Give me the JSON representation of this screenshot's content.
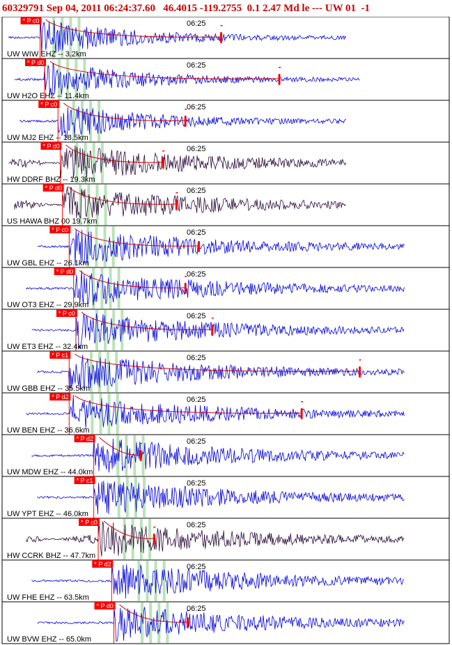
{
  "header": {
    "title": "60329791 Sep 04, 2011 06:24:37.60   46.4015 -119.2755  0.1 2.47 Md le --- UW 01  -1"
  },
  "colors": {
    "header_text": "#cc0000",
    "trace_blue": "#0000dd",
    "trace_dark": "#2a0a3a",
    "pick_box": "#ff0000",
    "coda_curve": "#cc0000",
    "tick_green": "#a8dca8",
    "panel_border": "#000000",
    "background": "#ffffff"
  },
  "chart_data": {
    "type": "seismogram",
    "time_tick_label": "06:25",
    "stations": [
      {
        "label": "UW WIW EHZ -- 3.2km",
        "pick": "P c0",
        "pick_pos": 0.085,
        "color": "blue",
        "end_mark": 0.49
      },
      {
        "label": "UW H2O EHZ -- 11.4km",
        "pick": "P d0",
        "pick_pos": 0.095,
        "color": "blue",
        "end_mark": 0.62
      },
      {
        "label": "UW MJ2 EHZ -- 18.5km",
        "pick": "P c0",
        "pick_pos": 0.125,
        "color": "blue",
        "end_mark": 0.41
      },
      {
        "label": "HW DDRF BHZ -- 19.3km",
        "pick": "P d0",
        "pick_pos": 0.13,
        "color": "dark",
        "end_mark": 0.36
      },
      {
        "label": "US HAWA BHZ 00 19.7km",
        "pick": "P d0",
        "pick_pos": 0.135,
        "color": "dark",
        "end_mark": 0.39
      },
      {
        "label": "UW GBL EHZ -- 26.1km",
        "pick": "P c0",
        "pick_pos": 0.15,
        "color": "blue",
        "end_mark": 0.44
      },
      {
        "label": "UW OT3 EHZ -- 29.9km",
        "pick": "P d0",
        "pick_pos": 0.16,
        "color": "blue",
        "end_mark": 0.41
      },
      {
        "label": "UW ET3 EHZ -- 32.4km",
        "pick": "P c0",
        "pick_pos": 0.165,
        "color": "blue",
        "end_mark": 0.47
      },
      {
        "label": "UW GBB EHZ -- 35.5km",
        "pick": "P c1",
        "pick_pos": 0.15,
        "color": "blue",
        "end_mark": 0.8
      },
      {
        "label": "UW BEN EHZ -- 36.6km",
        "pick": "P d2",
        "pick_pos": 0.15,
        "color": "blue",
        "end_mark": 0.67
      },
      {
        "label": "UW MDW EHZ -- 44.0km",
        "pick": "P d2",
        "pick_pos": 0.205,
        "color": "blue",
        "end_mark": 0.31
      },
      {
        "label": "UW YPT EHZ -- 46.0km",
        "pick": "P c1",
        "pick_pos": 0.205,
        "color": "blue",
        "end_mark": null
      },
      {
        "label": "HW CCRK BHZ -- 47.7km",
        "pick": "P c0",
        "pick_pos": 0.215,
        "color": "dark",
        "end_mark": 0.34
      },
      {
        "label": "UW FHE EHZ -- 63.5km",
        "pick": "P d2",
        "pick_pos": 0.245,
        "color": "blue",
        "end_mark": null
      },
      {
        "label": "UW BVW EHZ -- 65.0km",
        "pick": "P d0",
        "pick_pos": 0.25,
        "color": "blue",
        "end_mark": 0.415
      }
    ],
    "grid": false,
    "legend": "none"
  }
}
